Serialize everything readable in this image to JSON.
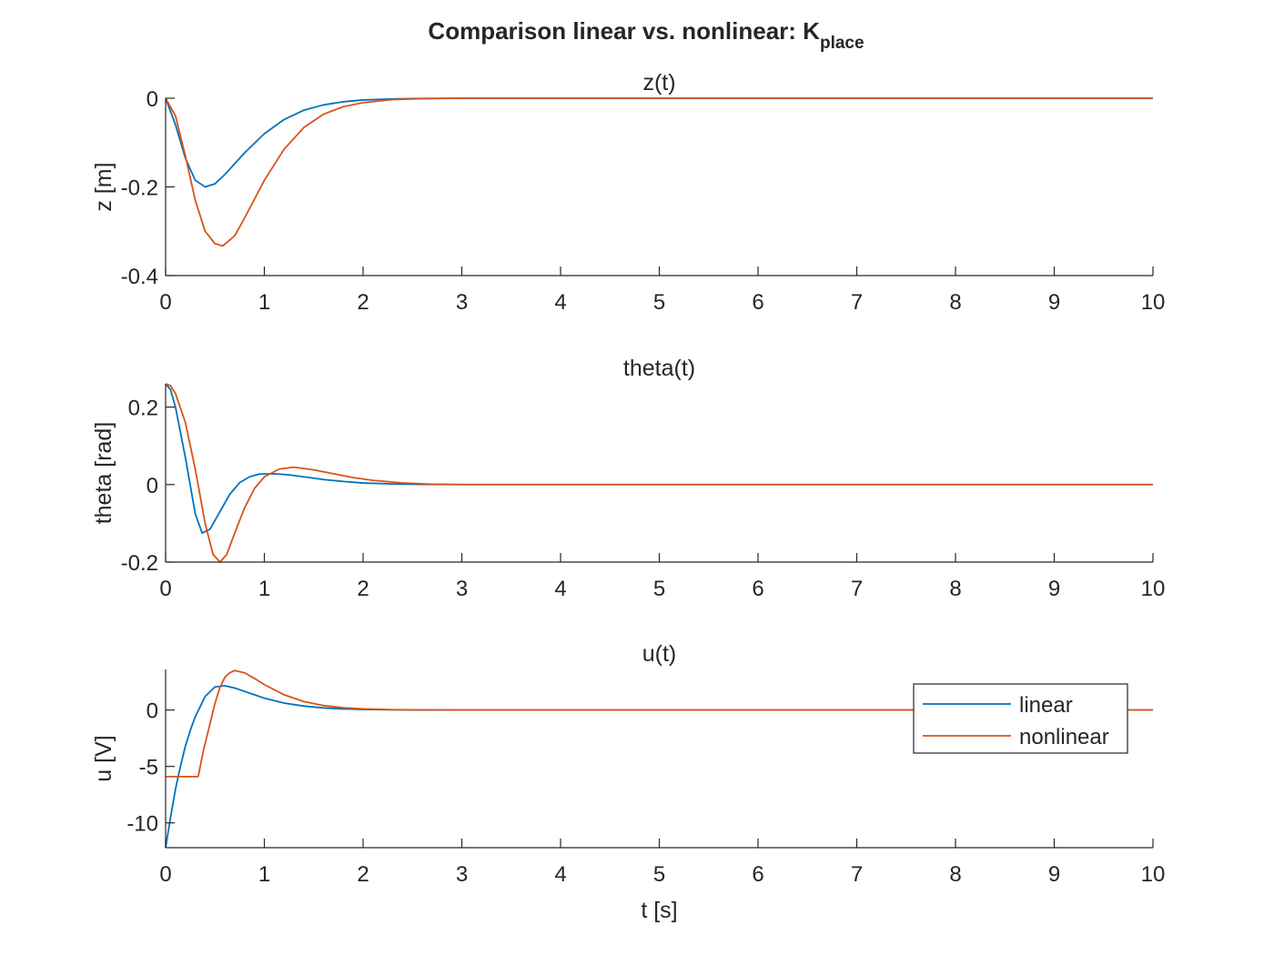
{
  "figure": {
    "title": "Comparison linear vs. nonlinear: K",
    "title_subscript": "place",
    "background": "#ffffff",
    "axes_color": "#262626"
  },
  "legend": {
    "placement": "upper-right of third subplot",
    "entries": [
      "linear",
      "nonlinear"
    ]
  },
  "chart_data": [
    {
      "type": "line",
      "title": "z(t)",
      "xlabel": "",
      "ylabel": "z [m]",
      "xlim": [
        0,
        10
      ],
      "ylim": [
        -0.4,
        0
      ],
      "xticks": [
        0,
        1,
        2,
        3,
        4,
        5,
        6,
        7,
        8,
        9,
        10
      ],
      "yticks": [
        -0.4,
        -0.2,
        0
      ],
      "ytick_labels": [
        "-0.4",
        "-0.2",
        "0"
      ],
      "grid": false,
      "series": [
        {
          "name": "linear",
          "color": "#0072BD",
          "x": [
            0,
            0.1,
            0.2,
            0.3,
            0.4,
            0.5,
            0.6,
            0.8,
            1.0,
            1.2,
            1.4,
            1.6,
            1.8,
            2.0,
            2.3,
            2.6,
            3.0,
            4.0,
            10.0
          ],
          "y": [
            0,
            -0.06,
            -0.135,
            -0.185,
            -0.2,
            -0.193,
            -0.172,
            -0.123,
            -0.08,
            -0.048,
            -0.027,
            -0.015,
            -0.008,
            -0.004,
            -0.0015,
            -0.0005,
            0,
            0,
            0
          ]
        },
        {
          "name": "nonlinear",
          "color": "#D95319",
          "x": [
            0,
            0.1,
            0.2,
            0.3,
            0.4,
            0.5,
            0.58,
            0.7,
            0.8,
            1.0,
            1.2,
            1.4,
            1.6,
            1.8,
            2.0,
            2.3,
            2.6,
            3.0,
            10.0
          ],
          "y": [
            0,
            -0.04,
            -0.13,
            -0.23,
            -0.3,
            -0.328,
            -0.333,
            -0.31,
            -0.27,
            -0.185,
            -0.115,
            -0.066,
            -0.036,
            -0.019,
            -0.01,
            -0.003,
            -0.001,
            0,
            0
          ]
        }
      ]
    },
    {
      "type": "line",
      "title": "theta(t)",
      "xlabel": "",
      "ylabel": "theta [rad]",
      "xlim": [
        0,
        10
      ],
      "ylim": [
        -0.2,
        0.26
      ],
      "xticks": [
        0,
        1,
        2,
        3,
        4,
        5,
        6,
        7,
        8,
        9,
        10
      ],
      "yticks": [
        -0.2,
        0,
        0.2
      ],
      "ytick_labels": [
        "-0.2",
        "0",
        "0.2"
      ],
      "grid": false,
      "series": [
        {
          "name": "linear",
          "color": "#0072BD",
          "x": [
            0,
            0.05,
            0.1,
            0.2,
            0.3,
            0.37,
            0.45,
            0.55,
            0.65,
            0.75,
            0.85,
            0.95,
            1.1,
            1.25,
            1.4,
            1.6,
            1.8,
            2.0,
            2.3,
            2.6,
            3.0,
            10.0
          ],
          "y": [
            0.26,
            0.245,
            0.2,
            0.07,
            -0.075,
            -0.125,
            -0.115,
            -0.07,
            -0.025,
            0.005,
            0.02,
            0.027,
            0.028,
            0.025,
            0.02,
            0.013,
            0.008,
            0.004,
            0.0015,
            0.0005,
            0,
            0
          ]
        },
        {
          "name": "nonlinear",
          "color": "#D95319",
          "x": [
            0,
            0.05,
            0.1,
            0.2,
            0.3,
            0.4,
            0.48,
            0.55,
            0.62,
            0.7,
            0.8,
            0.9,
            1.0,
            1.15,
            1.3,
            1.5,
            1.7,
            1.9,
            2.1,
            2.4,
            2.7,
            3.0,
            10.0
          ],
          "y": [
            0.26,
            0.255,
            0.235,
            0.16,
            0.04,
            -0.1,
            -0.18,
            -0.2,
            -0.18,
            -0.125,
            -0.06,
            -0.01,
            0.02,
            0.04,
            0.045,
            0.038,
            0.028,
            0.018,
            0.011,
            0.004,
            0.001,
            0,
            0
          ]
        }
      ]
    },
    {
      "type": "line",
      "title": "u(t)",
      "xlabel": "t [s]",
      "ylabel": "u [V]",
      "xlim": [
        0,
        10
      ],
      "ylim": [
        -12.2,
        3.6
      ],
      "xticks": [
        0,
        1,
        2,
        3,
        4,
        5,
        6,
        7,
        8,
        9,
        10
      ],
      "yticks": [
        -10,
        -5,
        0
      ],
      "ytick_labels": [
        "-10",
        "-5",
        "0"
      ],
      "grid": false,
      "series": [
        {
          "name": "linear",
          "color": "#0072BD",
          "x": [
            0,
            0.05,
            0.1,
            0.15,
            0.2,
            0.25,
            0.3,
            0.4,
            0.5,
            0.6,
            0.7,
            0.8,
            1.0,
            1.2,
            1.4,
            1.6,
            1.8,
            2.0,
            2.3,
            2.6,
            3.0,
            10.0
          ],
          "y": [
            -12.2,
            -9.5,
            -7.0,
            -5.0,
            -3.2,
            -1.8,
            -0.6,
            1.2,
            2.05,
            2.15,
            1.95,
            1.65,
            1.05,
            0.62,
            0.35,
            0.19,
            0.1,
            0.05,
            0.02,
            0.005,
            0,
            0
          ]
        },
        {
          "name": "nonlinear",
          "color": "#D95319",
          "x": [
            0,
            0.33,
            0.38,
            0.45,
            0.5,
            0.55,
            0.6,
            0.65,
            0.7,
            0.8,
            0.9,
            1.0,
            1.2,
            1.4,
            1.6,
            1.8,
            2.0,
            2.3,
            2.6,
            3.0,
            10.0
          ],
          "y": [
            -5.9,
            -5.9,
            -3.7,
            -1.2,
            0.6,
            2.0,
            2.9,
            3.3,
            3.5,
            3.3,
            2.8,
            2.25,
            1.35,
            0.75,
            0.4,
            0.2,
            0.1,
            0.03,
            0.01,
            0,
            0
          ]
        }
      ]
    }
  ]
}
